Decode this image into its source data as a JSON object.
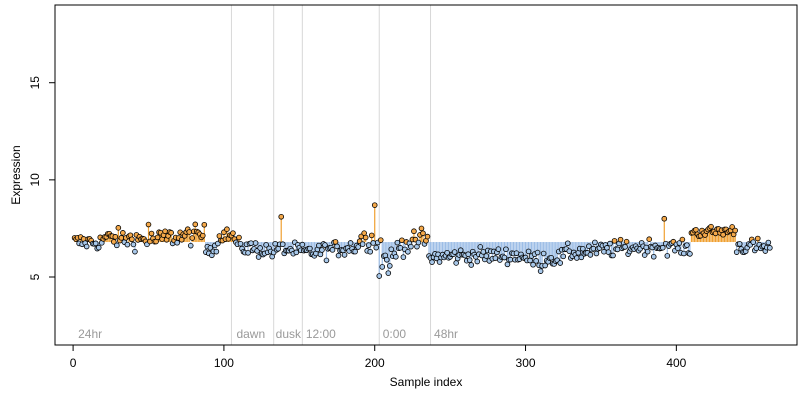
{
  "chart_data": {
    "type": "scatter",
    "title": "",
    "xlabel": "Sample index",
    "ylabel": "Expression",
    "xlim": [
      -12,
      480
    ],
    "ylim": [
      1.5,
      19
    ],
    "xticks": [
      0,
      100,
      200,
      300,
      400
    ],
    "yticks": [
      5,
      10,
      15
    ],
    "baseline": 6.8,
    "grid": false,
    "legend": "none",
    "colors": {
      "point_fill_high": "#f5a94a",
      "point_fill_low": "#a8c8ea",
      "stem_high": "#f0a030",
      "stem_low": "#9cbde6",
      "point_stroke": "#000000",
      "vline": "#d8d8d8",
      "annotation": "#9a9a9a"
    },
    "vlines": [
      105,
      133,
      152,
      203,
      237
    ],
    "annotations": [
      {
        "label": "24hr",
        "x": 2
      },
      {
        "label": "dawn",
        "x": 107
      },
      {
        "label": "dusk",
        "x": 133
      },
      {
        "label": "12:00",
        "x": 153
      },
      {
        "label": "0:00",
        "x": 204
      },
      {
        "label": "48hr",
        "x": 238
      }
    ],
    "segments": [
      {
        "x_start": 1,
        "x_end": 20,
        "y_start": 6.8,
        "y_end": 6.8,
        "noise": 0.3
      },
      {
        "x_start": 20,
        "x_end": 58,
        "y_start": 7.0,
        "y_end": 6.9,
        "noise": 0.35
      },
      {
        "x_start": 58,
        "x_end": 88,
        "y_start": 7.0,
        "y_end": 7.2,
        "noise": 0.35
      },
      {
        "x_start": 88,
        "x_end": 97,
        "y_start": 6.5,
        "y_end": 6.6,
        "noise": 0.3
      },
      {
        "x_start": 97,
        "x_end": 108,
        "y_start": 7.2,
        "y_end": 7.1,
        "noise": 0.25
      },
      {
        "x_start": 108,
        "x_end": 135,
        "y_start": 6.6,
        "y_end": 6.3,
        "noise": 0.3
      },
      {
        "x_start": 135,
        "x_end": 160,
        "y_start": 6.5,
        "y_end": 6.2,
        "noise": 0.3
      },
      {
        "x_start": 160,
        "x_end": 190,
        "y_start": 6.3,
        "y_end": 6.6,
        "noise": 0.3
      },
      {
        "x_start": 190,
        "x_end": 205,
        "y_start": 7.0,
        "y_end": 6.8,
        "noise": 0.4
      },
      {
        "x_start": 205,
        "x_end": 215,
        "y_start": 5.9,
        "y_end": 6.1,
        "noise": 0.35
      },
      {
        "x_start": 215,
        "x_end": 236,
        "y_start": 6.6,
        "y_end": 6.9,
        "noise": 0.35
      },
      {
        "x_start": 236,
        "x_end": 260,
        "y_start": 6.0,
        "y_end": 6.1,
        "noise": 0.3
      },
      {
        "x_start": 260,
        "x_end": 300,
        "y_start": 6.1,
        "y_end": 6.1,
        "noise": 0.3
      },
      {
        "x_start": 300,
        "x_end": 325,
        "y_start": 5.9,
        "y_end": 6.0,
        "noise": 0.3
      },
      {
        "x_start": 325,
        "x_end": 365,
        "y_start": 6.2,
        "y_end": 6.5,
        "noise": 0.3
      },
      {
        "x_start": 365,
        "x_end": 395,
        "y_start": 6.5,
        "y_end": 6.6,
        "noise": 0.3
      },
      {
        "x_start": 395,
        "x_end": 410,
        "y_start": 6.6,
        "y_end": 6.4,
        "noise": 0.25
      },
      {
        "x_start": 410,
        "x_end": 440,
        "y_start": 7.3,
        "y_end": 7.4,
        "noise": 0.2
      },
      {
        "x_start": 440,
        "x_end": 462,
        "y_start": 6.6,
        "y_end": 6.5,
        "noise": 0.3
      }
    ],
    "outliers": [
      {
        "x": 50,
        "y": 7.7
      },
      {
        "x": 138,
        "y": 8.1
      },
      {
        "x": 200,
        "y": 8.7
      },
      {
        "x": 203,
        "y": 5.05
      },
      {
        "x": 209,
        "y": 5.2
      },
      {
        "x": 231,
        "y": 7.5
      },
      {
        "x": 392,
        "y": 8.0
      },
      {
        "x": 310,
        "y": 5.3
      }
    ]
  }
}
